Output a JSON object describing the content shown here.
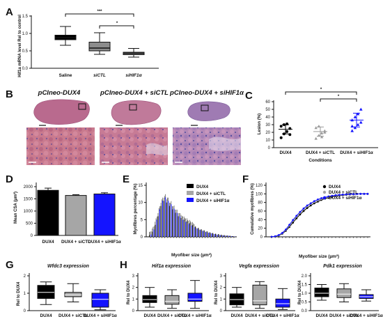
{
  "panel_letters": [
    "A",
    "B",
    "C",
    "D",
    "E",
    "F",
    "G",
    "H"
  ],
  "panelA": {
    "ylabel": "Hif1a mRNA level Rel to control",
    "yticks": [
      "0.0",
      "0.5",
      "1.0",
      "1.5"
    ],
    "categories": [
      "Saline",
      "siCTL",
      "siHIF1α"
    ],
    "sig": [
      "***",
      "*"
    ]
  },
  "panelB": {
    "titles": [
      "pCIneo-DUX4",
      "pCIneo-DUX4 + siCTL",
      "pCIneo-DUX4 + siHIF1α"
    ]
  },
  "panelC": {
    "ylabel": "Lesion (%)",
    "xlabel": "Conditions",
    "yticks": [
      "0",
      "10",
      "20",
      "30",
      "40",
      "50",
      "60"
    ],
    "categories": [
      "DUX4",
      "DUX4 + siCTL",
      "DUX4 + siHIF1α"
    ],
    "sig": [
      "*",
      "*"
    ]
  },
  "panelD": {
    "ylabel": "Mean CSA (µm²)",
    "yticks": [
      "0",
      "500",
      "1000",
      "1500",
      "2000"
    ],
    "categories": [
      "DUX4",
      "DUX4 + siCTL",
      "DUX4 + siHIF1α"
    ]
  },
  "panelE": {
    "ylabel": "Myofibres percentage (%)",
    "xlabel": "Myofiber size (µm²)",
    "yticks": [
      "0",
      "5",
      "10",
      "15"
    ],
    "legend": [
      "DUX4",
      "DUX4 + siCTL",
      "DUX4 + siHIF1α"
    ]
  },
  "panelF": {
    "ylabel": "Cumulative myofibres (%)",
    "xlabel": "Myofiber size (µm²)",
    "yticks": [
      "0",
      "20",
      "40",
      "60",
      "80",
      "100",
      "120"
    ],
    "legend": [
      "DUX4",
      "DUX4 + siCTL",
      "DUX4 + siHIF1α"
    ]
  },
  "panelG": {
    "title": "Wfdc3 expression",
    "ylabel": "Rel to DUX4",
    "yticks": [
      "0",
      "1",
      "2"
    ],
    "categories": [
      "DUX4",
      "DUX4 + siCTL",
      "DUX4 + siHIF1α"
    ]
  },
  "panelH": [
    {
      "title": "Hif1a expression",
      "ylabel": "Rel to DUX4",
      "yticks": [
        "0",
        "1",
        "2",
        "3"
      ],
      "categories": [
        "DUX4",
        "DUX4 + siCTL",
        "DUX4 + siHIF1α"
      ]
    },
    {
      "title": "Vegfa expression",
      "ylabel": "Rel to DUX4",
      "yticks": [
        "0",
        "1",
        "2",
        "3"
      ],
      "categories": [
        "DUX4",
        "DUX4 + siCTL",
        "DUX4 + siHIF1α"
      ]
    },
    {
      "title": "Pdk1 expression",
      "ylabel": "Rel to DUX4",
      "yticks": [
        "0.0",
        "0.5",
        "1.0",
        "1.5",
        "2.0"
      ],
      "categories": [
        "DUX4",
        "DUX4 + siCTL",
        "DUX4 + siHIF1α"
      ]
    }
  ],
  "colors": {
    "black": "#000000",
    "grey": "#a6a6a6",
    "blue": "#1414ff"
  },
  "chart_data": [
    {
      "panel": "A",
      "type": "box",
      "ylabel": "Hif1a mRNA level Rel to control",
      "ylim": [
        0,
        1.5
      ],
      "categories": [
        "Saline",
        "siCTL",
        "siHIF1α"
      ],
      "boxes": [
        {
          "min": 0.66,
          "q1": 0.82,
          "median": 0.88,
          "q3": 0.95,
          "max": 1.2
        },
        {
          "min": 0.4,
          "q1": 0.5,
          "median": 0.58,
          "q3": 0.75,
          "max": 1.02
        },
        {
          "min": 0.32,
          "q1": 0.39,
          "median": 0.43,
          "q3": 0.46,
          "max": 0.57
        }
      ],
      "significance": [
        {
          "from": "Saline",
          "to": "siHIF1α",
          "label": "***"
        },
        {
          "from": "siCTL",
          "to": "siHIF1α",
          "label": "*"
        }
      ]
    },
    {
      "panel": "C",
      "type": "scatter",
      "ylabel": "Lesion (%)",
      "xlabel": "Conditions",
      "ylim": [
        0,
        60
      ],
      "categories": [
        "DUX4",
        "DUX4 + siCTL",
        "DUX4 + siHIF1α"
      ],
      "points": [
        [
          13,
          18,
          21,
          25,
          28,
          30,
          31,
          17
        ],
        [
          12,
          16,
          19,
          22,
          26,
          28,
          14,
          20
        ],
        [
          22,
          26,
          30,
          33,
          36,
          40,
          44,
          50,
          28
        ]
      ],
      "mean": [
        24,
        21,
        36
      ],
      "sd": [
        6,
        6,
        9
      ],
      "significance": [
        {
          "from": "DUX4",
          "to": "DUX4 + siHIF1α",
          "label": "*"
        },
        {
          "from": "DUX4 + siCTL",
          "to": "DUX4 + siHIF1α",
          "label": "*"
        }
      ]
    },
    {
      "panel": "D",
      "type": "bar",
      "ylabel": "Mean CSA (µm²)",
      "ylim": [
        0,
        2000
      ],
      "categories": [
        "DUX4",
        "DUX4 + siCTL",
        "DUX4 + siHIF1α"
      ],
      "values": [
        1850,
        1640,
        1700
      ],
      "errors": [
        90,
        30,
        50
      ]
    },
    {
      "panel": "E",
      "type": "bar",
      "ylabel": "Myofibres percentage (%)",
      "xlabel": "Myofiber size (µm²)",
      "ylim": [
        0,
        15
      ],
      "series": [
        {
          "name": "DUX4",
          "values": [
            0.5,
            1.5,
            3.5,
            6,
            9,
            10.5,
            10,
            9,
            8,
            7,
            6,
            5.5,
            5,
            4.5,
            4,
            3.4,
            3,
            2.6,
            2.2,
            1.9,
            1.6,
            1.3,
            1.1,
            0.9,
            0.8,
            0.6,
            0.5,
            0.4,
            0.3,
            0.2
          ]
        },
        {
          "name": "DUX4 + siCTL",
          "values": [
            0.6,
            2,
            4.5,
            7.5,
            10,
            11,
            10.5,
            9,
            8,
            7,
            6,
            5.2,
            4.6,
            4,
            3.6,
            3,
            2.6,
            2.2,
            1.9,
            1.6,
            1.3,
            1.1,
            0.9,
            0.7,
            0.6,
            0.5,
            0.4,
            0.3,
            0.2,
            0.2
          ]
        },
        {
          "name": "DUX4 + siHIF1α",
          "values": [
            0.7,
            2.2,
            5,
            8,
            10.5,
            11.5,
            10.5,
            9.5,
            8.2,
            7,
            6,
            5,
            4.4,
            3.8,
            3.3,
            2.8,
            2.4,
            2,
            1.7,
            1.4,
            1.2,
            1,
            0.8,
            0.6,
            0.5,
            0.4,
            0.3,
            0.3,
            0.2,
            0.1
          ]
        }
      ]
    },
    {
      "panel": "F",
      "type": "line",
      "ylabel": "Cumulative myofibres (%)",
      "xlabel": "Myofiber size (µm²)",
      "ylim": [
        0,
        120
      ],
      "series": [
        {
          "name": "DUX4",
          "values": [
            0,
            1,
            3,
            7,
            14,
            23,
            33,
            43,
            52,
            60,
            67,
            73,
            78,
            82,
            86,
            89,
            91,
            93,
            95,
            96,
            97,
            98,
            98.5,
            99,
            99.5,
            100,
            100,
            100
          ]
        },
        {
          "name": "DUX4 + siCTL",
          "values": [
            0,
            1,
            3.5,
            8,
            16,
            26,
            37,
            47,
            56,
            64,
            71,
            77,
            81,
            85,
            88,
            91,
            93,
            95,
            96,
            97,
            98,
            98.7,
            99,
            99.5,
            99.8,
            100,
            100,
            100
          ]
        },
        {
          "name": "DUX4 + siHIF1α",
          "values": [
            0,
            1.2,
            4,
            9,
            17,
            28,
            39,
            49,
            58,
            66,
            73,
            78,
            83,
            87,
            90,
            92,
            94,
            95.5,
            96.8,
            97.6,
            98.3,
            98.9,
            99.3,
            99.6,
            99.8,
            100,
            100,
            100
          ]
        }
      ]
    },
    {
      "panel": "G",
      "type": "box",
      "title": "Wfdc3 expression",
      "ylabel": "Rel to DUX4",
      "ylim": [
        0,
        2
      ],
      "categories": [
        "DUX4",
        "DUX4 + siCTL",
        "DUX4 + siHIF1α"
      ],
      "boxes": [
        {
          "min": 0.35,
          "q1": 0.7,
          "median": 1.05,
          "q3": 1.45,
          "max": 1.65
        },
        {
          "min": 0.5,
          "q1": 0.8,
          "median": 0.9,
          "q3": 1.05,
          "max": 1.55
        },
        {
          "min": 0.05,
          "q1": 0.2,
          "median": 0.65,
          "q3": 1.0,
          "max": 1.2
        }
      ]
    },
    {
      "panel": "H",
      "type": "box",
      "title": "Hif1a expression",
      "ylabel": "Rel to DUX4",
      "ylim": [
        0,
        3
      ],
      "categories": [
        "DUX4",
        "DUX4 + siCTL",
        "DUX4 + siHIF1α"
      ],
      "boxes": [
        {
          "min": 0.3,
          "q1": 0.7,
          "median": 0.95,
          "q3": 1.3,
          "max": 2.0
        },
        {
          "min": 0.2,
          "q1": 0.55,
          "median": 0.8,
          "q3": 1.3,
          "max": 1.8
        },
        {
          "min": 0.2,
          "q1": 0.8,
          "median": 1.0,
          "q3": 1.5,
          "max": 2.6
        }
      ]
    },
    {
      "panel": "H",
      "type": "box",
      "title": "Vegfa expression",
      "ylabel": "Rel to DUX4",
      "ylim": [
        0,
        3
      ],
      "categories": [
        "DUX4",
        "DUX4 + siCTL",
        "DUX4 + siHIF1α"
      ],
      "boxes": [
        {
          "min": 0.3,
          "q1": 0.5,
          "median": 0.95,
          "q3": 1.45,
          "max": 2.0
        },
        {
          "min": 0.2,
          "q1": 0.5,
          "median": 0.85,
          "q3": 2.2,
          "max": 2.5
        },
        {
          "min": 0.1,
          "q1": 0.3,
          "median": 0.6,
          "q3": 1.0,
          "max": 1.9
        }
      ]
    },
    {
      "panel": "H",
      "type": "box",
      "title": "Pdk1 expression",
      "ylabel": "Rel to DUX4",
      "ylim": [
        0,
        2
      ],
      "categories": [
        "DUX4",
        "DUX4 + siCTL",
        "DUX4 + siHIF1α"
      ],
      "boxes": [
        {
          "min": 0.6,
          "q1": 0.8,
          "median": 1.0,
          "q3": 1.3,
          "max": 1.5
        },
        {
          "min": 0.5,
          "q1": 0.75,
          "median": 0.95,
          "q3": 1.25,
          "max": 1.55
        },
        {
          "min": 0.55,
          "q1": 0.7,
          "median": 0.8,
          "q3": 0.92,
          "max": 1.2
        }
      ]
    }
  ]
}
